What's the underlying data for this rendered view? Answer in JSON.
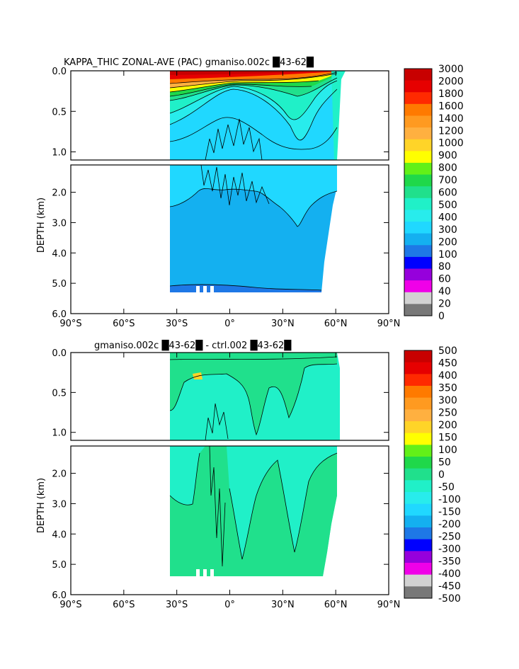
{
  "chart_data": [
    {
      "type": "heatmap",
      "title": "KAPPA_THIC ZONAL-AVE (PAC) gmaniso.002c █43-62█",
      "ylabel": "DEPTH (km)",
      "xlabel": "",
      "x_ticks": [
        "90°S",
        "60°S",
        "30°S",
        "0°",
        "30°N",
        "60°N",
        "90°N"
      ],
      "y_ticks_upper": [
        "0.0",
        "0.5",
        "1.0"
      ],
      "y_ticks_lower": [
        "2.0",
        "3.0",
        "4.0",
        "5.0",
        "6.0"
      ],
      "xlim_deg": [
        -90,
        90
      ],
      "ylim_km": [
        0,
        6
      ],
      "upper_panel_depth_km": [
        0,
        1.1
      ],
      "lower_panel_depth_km": [
        1.1,
        6
      ],
      "colorbar": {
        "labels": [
          "3000",
          "2000",
          "1800",
          "1600",
          "1400",
          "1200",
          "1000",
          "900",
          "800",
          "700",
          "600",
          "500",
          "400",
          "300",
          "200",
          "100",
          "80",
          "60",
          "40",
          "20",
          "0"
        ],
        "colors": [
          "#c80000",
          "#e60000",
          "#ff2a00",
          "#ff7a00",
          "#ff9a20",
          "#ffb040",
          "#ffd428",
          "#ffff00",
          "#62f018",
          "#1fd84a",
          "#20e08c",
          "#20f0c8",
          "#28ecec",
          "#20d8ff",
          "#14b0f0",
          "#1e78e6",
          "#0000ff",
          "#9600dc",
          "#f000e8",
          "#d2d2d2",
          "#787878"
        ]
      },
      "data_extent": {
        "lat_min": -34,
        "lat_max": 61,
        "depth_max_km": 5.35
      }
    },
    {
      "type": "heatmap",
      "title": "gmaniso.002c █43-62█ - ctrl.002 █43-62█",
      "ylabel": "DEPTH (km)",
      "xlabel": "",
      "x_ticks": [
        "90°S",
        "60°S",
        "30°S",
        "0°",
        "30°N",
        "60°N",
        "90°N"
      ],
      "y_ticks_upper": [
        "0.0",
        "0.5",
        "1.0"
      ],
      "y_ticks_lower": [
        "2.0",
        "3.0",
        "4.0",
        "5.0",
        "6.0"
      ],
      "xlim_deg": [
        -90,
        90
      ],
      "ylim_km": [
        0,
        6
      ],
      "upper_panel_depth_km": [
        0,
        1.1
      ],
      "lower_panel_depth_km": [
        1.1,
        6
      ],
      "colorbar": {
        "labels": [
          "500",
          "450",
          "400",
          "350",
          "300",
          "250",
          "200",
          "150",
          "100",
          "50",
          "0",
          "-50",
          "-100",
          "-150",
          "-200",
          "-250",
          "-300",
          "-350",
          "-400",
          "-450",
          "-500"
        ],
        "colors": [
          "#c80000",
          "#e60000",
          "#ff2a00",
          "#ff7a00",
          "#ff9a20",
          "#ffb040",
          "#ffd428",
          "#ffff00",
          "#62f018",
          "#1fd84a",
          "#20e08c",
          "#20f0c8",
          "#28ecec",
          "#20d8ff",
          "#14b0f0",
          "#1e78e6",
          "#0000ff",
          "#9600dc",
          "#f000e8",
          "#d2d2d2",
          "#787878"
        ]
      },
      "data_extent": {
        "lat_min": -34,
        "lat_max": 61,
        "depth_max_km": 5.35
      }
    }
  ]
}
